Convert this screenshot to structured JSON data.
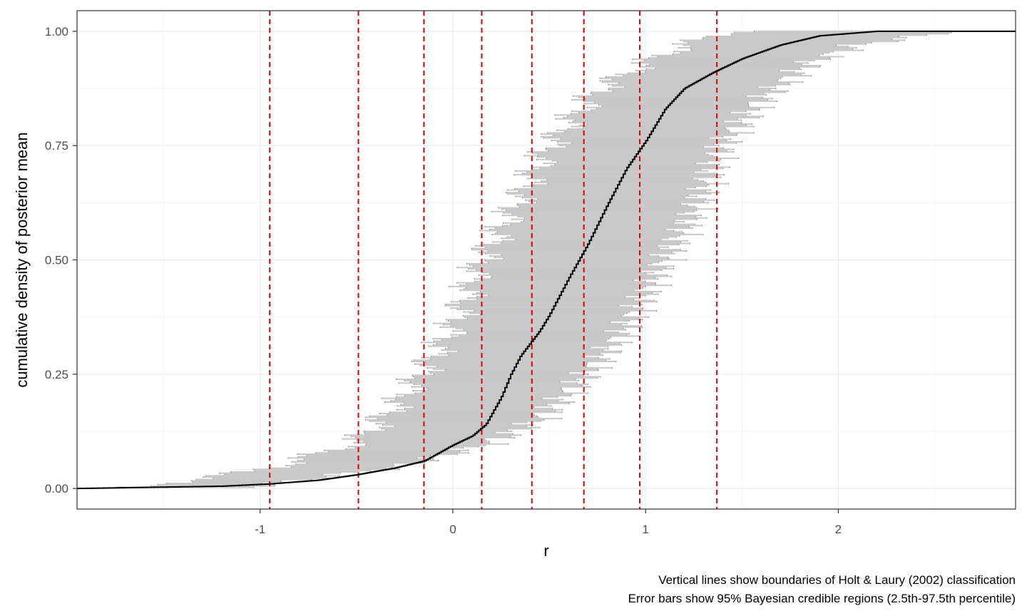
{
  "chart_data": {
    "type": "line",
    "xlabel": "r",
    "ylabel": "cumulative density of posterior mean",
    "captions": [
      "Vertical lines show boundaries of Holt & Laury (2002) classification",
      "Error bars show 95% Bayesian credible regions (2.5th-97.5th percentile)"
    ],
    "xlim": [
      -1.95,
      2.92
    ],
    "ylim": [
      -0.045,
      1.045
    ],
    "x_ticks": [
      -1,
      0,
      1,
      2
    ],
    "x_tick_labels": [
      "-1",
      "0",
      "1",
      "2"
    ],
    "y_ticks": [
      0,
      0.25,
      0.5,
      0.75,
      1
    ],
    "y_tick_labels": [
      "0.00",
      "0.25",
      "0.50",
      "0.75",
      "1.00"
    ],
    "grid": true,
    "vlines": [
      -0.95,
      -0.49,
      -0.15,
      0.15,
      0.41,
      0.68,
      0.97,
      1.37
    ],
    "ecdf_knots": [
      [
        -1.95,
        0
      ],
      [
        -1.2,
        0.005
      ],
      [
        -0.95,
        0.01
      ],
      [
        -0.7,
        0.018
      ],
      [
        -0.5,
        0.03
      ],
      [
        -0.3,
        0.045
      ],
      [
        -0.15,
        0.06
      ],
      [
        0,
        0.095
      ],
      [
        0.1,
        0.115
      ],
      [
        0.17,
        0.14
      ],
      [
        0.25,
        0.2
      ],
      [
        0.3,
        0.25
      ],
      [
        0.35,
        0.29
      ],
      [
        0.45,
        0.345
      ],
      [
        0.5,
        0.38
      ],
      [
        0.6,
        0.46
      ],
      [
        0.7,
        0.535
      ],
      [
        0.8,
        0.62
      ],
      [
        0.9,
        0.7
      ],
      [
        1.0,
        0.76
      ],
      [
        1.1,
        0.83
      ],
      [
        1.2,
        0.875
      ],
      [
        1.35,
        0.91
      ],
      [
        1.5,
        0.94
      ],
      [
        1.7,
        0.97
      ],
      [
        1.9,
        0.99
      ],
      [
        2.2,
        1.0
      ],
      [
        2.92,
        1.0
      ]
    ],
    "error_band_lower": [
      [
        -1.8,
        0
      ],
      [
        -1.3,
        0.02
      ],
      [
        -0.9,
        0.05
      ],
      [
        -0.5,
        0.1
      ],
      [
        -0.25,
        0.2
      ],
      [
        0.0,
        0.35
      ],
      [
        0.15,
        0.5
      ],
      [
        0.3,
        0.6
      ],
      [
        0.5,
        0.75
      ],
      [
        0.75,
        0.87
      ],
      [
        0.95,
        0.92
      ],
      [
        1.2,
        0.97
      ],
      [
        1.45,
        1.0
      ]
    ],
    "error_band_upper": [
      [
        -1.1,
        0
      ],
      [
        -0.25,
        0.05
      ],
      [
        0.2,
        0.1
      ],
      [
        0.45,
        0.15
      ],
      [
        0.7,
        0.25
      ],
      [
        0.9,
        0.35
      ],
      [
        1.1,
        0.5
      ],
      [
        1.25,
        0.6
      ],
      [
        1.4,
        0.75
      ],
      [
        1.6,
        0.85
      ],
      [
        1.85,
        0.93
      ],
      [
        2.1,
        0.97
      ],
      [
        2.6,
        1.0
      ]
    ],
    "colors": {
      "ecdf_line": "#000000",
      "error_bars": "#c8c8c8",
      "error_bar_caps": "#8c8c8c",
      "vlines": "#dd0000",
      "grid_major": "#ebebeb",
      "grid_minor": "#f3f3f3",
      "panel_border": "#333333"
    }
  }
}
